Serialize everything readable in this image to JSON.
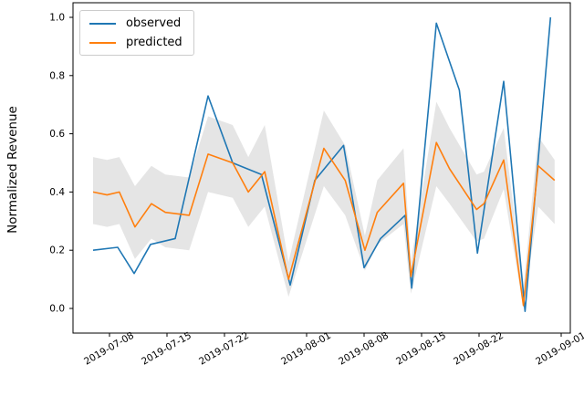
{
  "chart_data": {
    "type": "line",
    "title": "",
    "ylabel": "Normalized Revenue",
    "xlabel": "",
    "grid": false,
    "x_start_date": "2019-07-06",
    "x_axis": {
      "tick_labels": [
        "2019-07-08",
        "2019-07-15",
        "2019-07-22",
        "2019-08-01",
        "2019-08-08",
        "2019-08-15",
        "2019-08-22",
        "2019-09-01"
      ],
      "tick_day_offsets": [
        2,
        9,
        16,
        26,
        33,
        40,
        47,
        57
      ],
      "range_days": [
        -2.4,
        58.1
      ],
      "tick_rotation_deg": 30
    },
    "y_axis": {
      "tick_labels": [
        "0.0",
        "0.2",
        "0.4",
        "0.6",
        "0.8",
        "1.0"
      ],
      "ticks": [
        0.0,
        0.2,
        0.4,
        0.6,
        0.8,
        1.0
      ],
      "range": [
        -0.085,
        1.05
      ]
    },
    "legend": {
      "position": "upper-left",
      "entries": [
        {
          "label": "observed",
          "color": "#1f77b4"
        },
        {
          "label": "predicted",
          "color": "#ff7f0e"
        }
      ]
    },
    "series": [
      {
        "name": "observed",
        "color": "#1f77b4",
        "x_days": [
          0,
          3,
          5,
          7,
          10,
          14,
          17,
          20.5,
          24,
          27,
          30.5,
          33,
          35,
          38,
          38.8,
          41.8,
          44.6,
          46.8,
          50,
          52.6,
          55.7
        ],
        "y": [
          0.2,
          0.21,
          0.12,
          0.22,
          0.24,
          0.73,
          0.5,
          0.46,
          0.08,
          0.44,
          0.56,
          0.14,
          0.24,
          0.32,
          0.07,
          0.98,
          0.75,
          0.19,
          0.78,
          -0.01,
          1.0
        ]
      },
      {
        "name": "predicted",
        "color": "#ff7f0e",
        "x_days": [
          0,
          1.7,
          3.2,
          5.1,
          7.1,
          8.8,
          11.7,
          14,
          17,
          18.9,
          20.9,
          23.8,
          28.1,
          30.7,
          33.1,
          34.6,
          37.8,
          38.7,
          41.8,
          43.4,
          46.7,
          47.6,
          50,
          52.4,
          54.2,
          56.2
        ],
        "y": [
          0.4,
          0.39,
          0.4,
          0.28,
          0.36,
          0.33,
          0.32,
          0.53,
          0.5,
          0.4,
          0.47,
          0.1,
          0.55,
          0.44,
          0.2,
          0.33,
          0.43,
          0.11,
          0.57,
          0.48,
          0.34,
          0.36,
          0.51,
          0.01,
          0.49,
          0.44
        ]
      }
    ],
    "band": {
      "name": "prediction-confidence-band",
      "color": "#888888",
      "opacity": 0.22,
      "x_days": [
        0,
        1.7,
        3.2,
        5.1,
        7.1,
        8.8,
        11.7,
        14,
        17,
        18.9,
        20.9,
        23.8,
        28.1,
        30.7,
        33.1,
        34.6,
        37.8,
        38.7,
        41.8,
        43.4,
        46.7,
        47.6,
        50,
        52.4,
        54.2,
        56.2
      ],
      "lower": [
        0.29,
        0.28,
        0.29,
        0.17,
        0.24,
        0.21,
        0.2,
        0.4,
        0.38,
        0.28,
        0.35,
        0.04,
        0.42,
        0.32,
        0.13,
        0.22,
        0.29,
        0.05,
        0.42,
        0.36,
        0.23,
        0.24,
        0.41,
        0.0,
        0.35,
        0.29
      ],
      "upper": [
        0.52,
        0.51,
        0.52,
        0.42,
        0.49,
        0.46,
        0.45,
        0.66,
        0.63,
        0.52,
        0.63,
        0.16,
        0.68,
        0.56,
        0.25,
        0.44,
        0.55,
        0.16,
        0.71,
        0.62,
        0.46,
        0.47,
        0.62,
        0.07,
        0.59,
        0.51
      ]
    }
  }
}
